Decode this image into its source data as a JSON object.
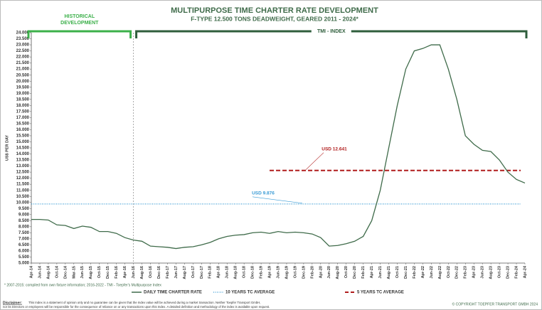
{
  "chart_data": {
    "type": "line",
    "title": "MULTIPURPOSE TIME CHARTER RATE DEVELOPMENT",
    "subtitle": "F-TYPE 12.500 TONS DEADWEIGHT, GEARED 2011 - 2024*",
    "y_label": "US$ PER DAY",
    "categories": [
      "Apr-14",
      "Jun-14",
      "Aug-14",
      "Oct-14",
      "Dec-14",
      "Mar-15",
      "Jun-15",
      "Aug-15",
      "Oct-15",
      "Dec-15",
      "Feb-16",
      "Apr-16",
      "Jun-16",
      "Aug-16",
      "Oct-16",
      "Dec-16",
      "Feb-17",
      "Jun-17",
      "Aug-17",
      "Oct-17",
      "Dec-17",
      "Feb-18",
      "Apr-18",
      "Jun-18",
      "Aug-18",
      "Oct-18",
      "Dec-18",
      "Feb-19",
      "Apr-19",
      "Jun-19",
      "Aug-19",
      "Oct-19",
      "Dec-19",
      "Feb-20",
      "Apr-20",
      "Jun-20",
      "Aug-20",
      "Oct-20",
      "Dec-20",
      "Feb-21",
      "Apr-21",
      "Jun-21",
      "Aug-21",
      "Oct-21",
      "Dec-21",
      "Feb-22",
      "Apr-22",
      "Jun-22",
      "Aug-22",
      "Oct-22",
      "Dec-22",
      "Feb-23",
      "Apr-23",
      "Jun-23",
      "Aug-23",
      "Oct-23",
      "Dec-23",
      "Feb-24",
      "Apr-24"
    ],
    "series": [
      {
        "name": "DAILY TIME CHARTER RATE",
        "color": "#3f6b4a",
        "values": [
          8600,
          8600,
          8550,
          8150,
          8100,
          7850,
          8050,
          7950,
          7600,
          7600,
          7450,
          7100,
          6900,
          6800,
          6400,
          6350,
          6300,
          6200,
          6300,
          6350,
          6500,
          6700,
          7000,
          7200,
          7300,
          7350,
          7500,
          7550,
          7450,
          7600,
          7500,
          7550,
          7500,
          7400,
          7100,
          6400,
          6450,
          6600,
          6800,
          7200,
          8500,
          11000,
          14500,
          18000,
          21000,
          22500,
          22700,
          23000,
          23000,
          21000,
          18500,
          15500,
          14800,
          14300,
          14200,
          13500,
          12500,
          11900,
          11600
        ]
      }
    ],
    "reference_lines": [
      {
        "name": "10 YEARS TC AVERAGE",
        "value": 9876,
        "value_label": "USD 9.876",
        "color": "#3a9bd5",
        "style": "dotted",
        "from": "Apr-14"
      },
      {
        "name": "5 YEARS TC AVERAGE",
        "value": 12641,
        "value_label": "USD 12.641",
        "color": "#b01c1c",
        "style": "dashed",
        "from": "Apr-19"
      }
    ],
    "sections": [
      {
        "label": "HISTORICAL DEVELOPMENT",
        "from": "Apr-14",
        "to": "Jun-16",
        "color": "#3cb04a"
      },
      {
        "label": "TMI - INDEX",
        "from": "Jun-16",
        "to": "Apr-24",
        "color": "#2f5e3c"
      }
    ],
    "ylim": [
      5000,
      24000
    ],
    "yticks": [
      {
        "value": 5000,
        "label": "5.000"
      },
      {
        "value": 5500,
        "label": "5.500"
      },
      {
        "value": 6000,
        "label": "6.000"
      },
      {
        "value": 6500,
        "label": "6.500"
      },
      {
        "value": 7000,
        "label": "7.000"
      },
      {
        "value": 7500,
        "label": "7.500"
      },
      {
        "value": 8000,
        "label": "8.000"
      },
      {
        "value": 8500,
        "label": "8.500"
      },
      {
        "value": 9000,
        "label": "9.000"
      },
      {
        "value": 9500,
        "label": "9.500"
      },
      {
        "value": 10000,
        "label": "10.000"
      },
      {
        "value": 10500,
        "label": "10.500"
      },
      {
        "value": 11000,
        "label": "11.000"
      },
      {
        "value": 11500,
        "label": "11.500"
      },
      {
        "value": 12000,
        "label": "12.000"
      },
      {
        "value": 12500,
        "label": "12.500"
      },
      {
        "value": 13000,
        "label": "13.000"
      },
      {
        "value": 13500,
        "label": "13.500"
      },
      {
        "value": 14000,
        "label": "14.000"
      },
      {
        "value": 14500,
        "label": "14.500"
      },
      {
        "value": 15000,
        "label": "15.000"
      },
      {
        "value": 15500,
        "label": "15.500"
      },
      {
        "value": 16000,
        "label": "16.000"
      },
      {
        "value": 16500,
        "label": "16.500"
      },
      {
        "value": 17000,
        "label": "17.000"
      },
      {
        "value": 17500,
        "label": "17.500"
      },
      {
        "value": 18000,
        "label": "18.000"
      },
      {
        "value": 18500,
        "label": "18.500"
      },
      {
        "value": 19000,
        "label": "19.000"
      },
      {
        "value": 19500,
        "label": "19.500"
      },
      {
        "value": 20000,
        "label": "20.000"
      },
      {
        "value": 20500,
        "label": "20.500"
      },
      {
        "value": 21000,
        "label": "21.000"
      },
      {
        "value": 21500,
        "label": "21.500"
      },
      {
        "value": 22000,
        "label": "22.000"
      },
      {
        "value": 22500,
        "label": "22.500"
      },
      {
        "value": 23000,
        "label": "23.000"
      },
      {
        "value": 23500,
        "label": "23.500"
      },
      {
        "value": 24000,
        "label": "24.000"
      }
    ],
    "grid": false,
    "footnote": "* 2007-2015: compiled from own fixture information; 2016-2022 - TMI - Toepfer's Multipurpose Index",
    "disclaimer_heading": "Disclaimer:",
    "disclaimer": [
      "This Index is a statement of opinion only and no guarantee can be given that the Index value will be achieved during a market transaction. Neither Toepfer Transport GmbH,",
      "nor its Directors or employees will be responsible for the consequence of reliance on or any transactions upon this Index. A detailed definition and methodology of the index is available upon request."
    ],
    "copyright": "© COPYRIGHT TOEPFER TRANSPORT GMBH 2024"
  }
}
